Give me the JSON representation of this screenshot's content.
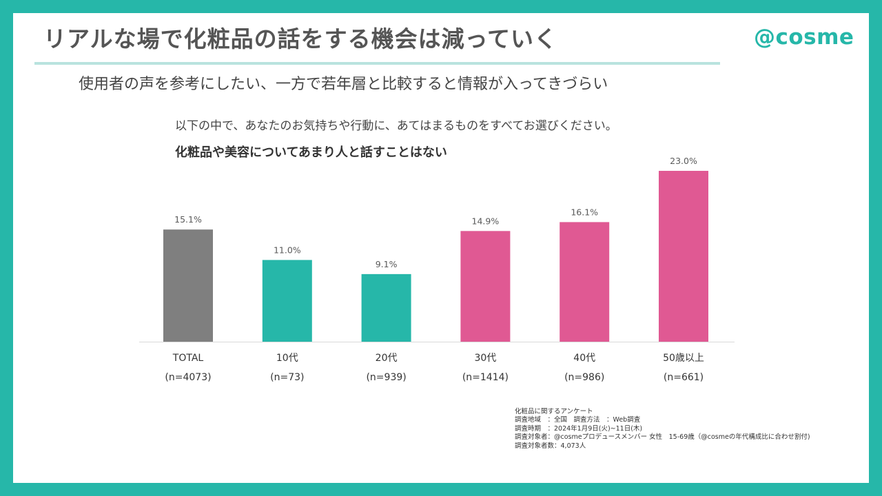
{
  "header": {
    "title": "リアルな場で化粧品の話をする機会は減っていく",
    "logo": "@cosme",
    "subtitle": "使用者の声を参考にしたい、一方で若年層と比較すると情報が入ってきづらい"
  },
  "question": "以下の中で、あなたのお気持ちや行動に、あてはまるものをすべてお選びください。",
  "chart_data": {
    "type": "bar",
    "title": "化粧品や美容についてあまり人と話すことはない",
    "categories": [
      "TOTAL",
      "10代",
      "20代",
      "30代",
      "40代",
      "50歳以上"
    ],
    "sample_sizes": [
      "(n=4073)",
      "(n=73)",
      "(n=939)",
      "(n=1414)",
      "(n=986)",
      "(n=661)"
    ],
    "values": [
      15.1,
      11.0,
      9.1,
      14.9,
      16.1,
      23.0
    ],
    "value_labels": [
      "15.1%",
      "11.0%",
      "9.1%",
      "14.9%",
      "16.1%",
      "23.0%"
    ],
    "colors": [
      "#7f7f7f",
      "#26b7a9",
      "#26b7a9",
      "#e05993",
      "#e05993",
      "#e05993"
    ],
    "unit": "%",
    "ylim": [
      0,
      25
    ],
    "xlabel": "",
    "ylabel": "",
    "grid": false,
    "legend": "none"
  },
  "survey_info": {
    "line1": "化粧品に関するアンケート",
    "line2": "調査地域　：全国　調査方法　：Web調査",
    "line3": "調査時期　：2024年1月9日(火)~11日(木)",
    "line4": "調査対象者：@cosmeプロデュースメンバー 女性　15-69歳（@cosmeの年代構成比に合わせ割付)",
    "line5": "調査対象者数：4,073人"
  },
  "colors": {
    "frame": "#26b7a9",
    "accent_teal": "#26b7a9",
    "accent_pink": "#e05993",
    "total_gray": "#7f7f7f",
    "rule": "#b9e3de"
  }
}
